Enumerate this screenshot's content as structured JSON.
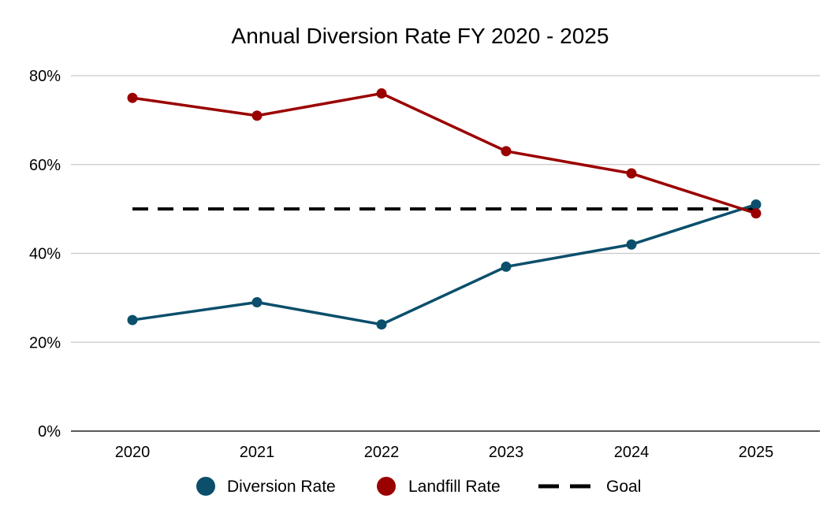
{
  "chart_data": {
    "type": "line",
    "title": "Annual Diversion Rate FY 2020 - 2025",
    "xlabel": "",
    "ylabel": "",
    "categories": [
      "2020",
      "2021",
      "2022",
      "2023",
      "2024",
      "2025"
    ],
    "y_ticks": [
      "0%",
      "20%",
      "40%",
      "60%",
      "80%"
    ],
    "ylim": [
      0,
      80
    ],
    "y_unit": "%",
    "grid": true,
    "legend_position": "bottom",
    "series": [
      {
        "name": "Diversion Rate",
        "values": [
          25,
          29,
          24,
          37,
          42,
          51
        ],
        "color": "#0b4f6c",
        "style": "solid",
        "markers": true
      },
      {
        "name": "Landfill Rate",
        "values": [
          75,
          71,
          76,
          63,
          58,
          49
        ],
        "color": "#9b0000",
        "style": "solid",
        "markers": true
      },
      {
        "name": "Goal",
        "values": [
          50,
          50,
          50,
          50,
          50,
          50
        ],
        "color": "#000000",
        "style": "dashed",
        "markers": false
      }
    ]
  }
}
